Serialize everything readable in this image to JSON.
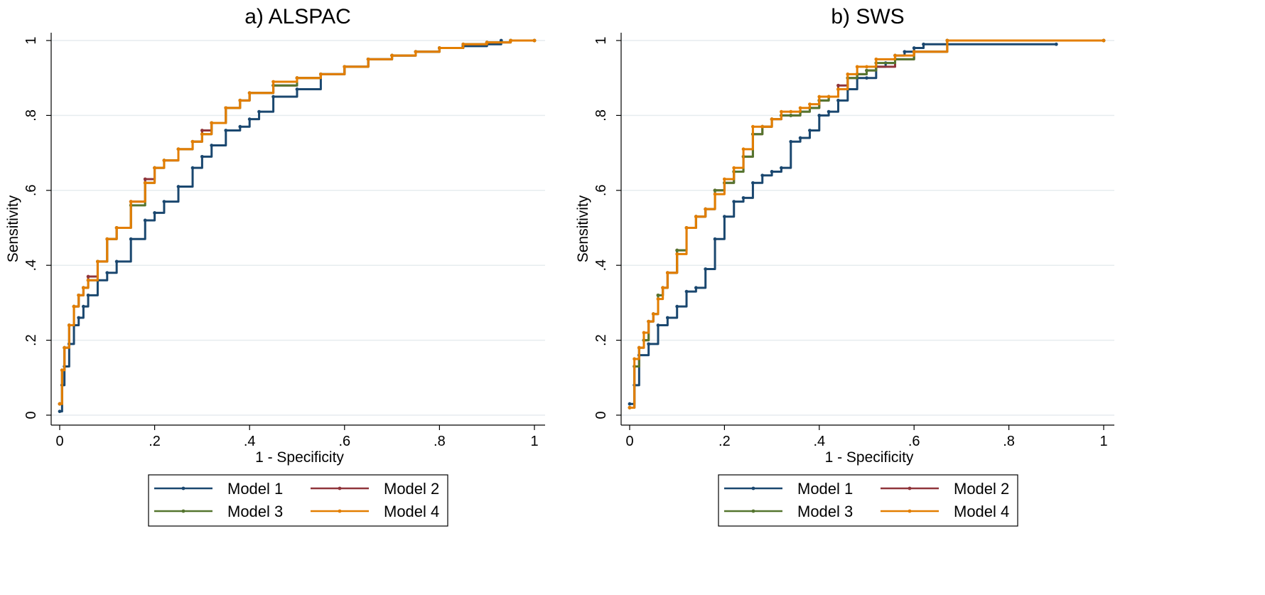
{
  "chart_data": [
    {
      "type": "line",
      "title": "a) ALSPAC",
      "xlabel": "1 - Specificity",
      "ylabel": "Sensitivity",
      "xlim": [
        0,
        1
      ],
      "ylim": [
        0,
        1
      ],
      "xticks": [
        "0",
        ".2",
        ".4",
        ".6",
        ".8",
        "1"
      ],
      "yticks": [
        "0",
        ".2",
        ".4",
        ".6",
        ".8",
        "1"
      ],
      "grid": "horizontal",
      "legend_position": "bottom",
      "series": [
        {
          "name": "Model 1",
          "color": "#1a476f",
          "x": [
            0,
            0.005,
            0.01,
            0.02,
            0.03,
            0.04,
            0.05,
            0.06,
            0.08,
            0.1,
            0.12,
            0.15,
            0.18,
            0.2,
            0.22,
            0.25,
            0.28,
            0.3,
            0.32,
            0.35,
            0.38,
            0.4,
            0.42,
            0.45,
            0.5,
            0.55,
            0.6,
            0.65,
            0.7,
            0.75,
            0.8,
            0.85,
            0.9,
            0.93
          ],
          "y": [
            0.01,
            0.08,
            0.13,
            0.19,
            0.24,
            0.26,
            0.29,
            0.32,
            0.36,
            0.38,
            0.41,
            0.47,
            0.52,
            0.54,
            0.57,
            0.61,
            0.66,
            0.69,
            0.72,
            0.76,
            0.77,
            0.79,
            0.81,
            0.85,
            0.87,
            0.91,
            0.93,
            0.95,
            0.96,
            0.97,
            0.98,
            0.985,
            0.99,
            1.0
          ]
        },
        {
          "name": "Model 2",
          "color": "#90353b",
          "x": [
            0,
            0.005,
            0.01,
            0.02,
            0.03,
            0.04,
            0.05,
            0.06,
            0.08,
            0.1,
            0.12,
            0.15,
            0.18,
            0.2,
            0.22,
            0.25,
            0.28,
            0.3,
            0.32,
            0.35,
            0.38,
            0.4,
            0.45,
            0.5,
            0.55,
            0.6,
            0.65,
            0.7,
            0.75,
            0.8,
            0.85,
            0.9,
            0.95,
            1
          ],
          "y": [
            0.03,
            0.12,
            0.18,
            0.24,
            0.29,
            0.32,
            0.34,
            0.37,
            0.41,
            0.47,
            0.5,
            0.57,
            0.63,
            0.66,
            0.68,
            0.71,
            0.73,
            0.76,
            0.78,
            0.82,
            0.84,
            0.86,
            0.88,
            0.9,
            0.91,
            0.93,
            0.95,
            0.96,
            0.97,
            0.98,
            0.99,
            0.995,
            1.0,
            1.0
          ]
        },
        {
          "name": "Model 3",
          "color": "#55752f",
          "x": [
            0,
            0.005,
            0.01,
            0.02,
            0.03,
            0.04,
            0.05,
            0.06,
            0.08,
            0.1,
            0.12,
            0.15,
            0.18,
            0.2,
            0.22,
            0.25,
            0.28,
            0.3,
            0.32,
            0.35,
            0.38,
            0.4,
            0.45,
            0.5,
            0.55,
            0.6,
            0.65,
            0.7,
            0.75,
            0.8,
            0.85,
            0.9,
            0.95,
            1
          ],
          "y": [
            0.03,
            0.12,
            0.18,
            0.24,
            0.29,
            0.32,
            0.34,
            0.36,
            0.41,
            0.47,
            0.5,
            0.56,
            0.62,
            0.66,
            0.68,
            0.71,
            0.73,
            0.75,
            0.78,
            0.82,
            0.84,
            0.86,
            0.88,
            0.9,
            0.91,
            0.93,
            0.95,
            0.96,
            0.97,
            0.98,
            0.99,
            0.995,
            1.0,
            1.0
          ]
        },
        {
          "name": "Model 4",
          "color": "#e37e00",
          "x": [
            0,
            0.005,
            0.01,
            0.02,
            0.03,
            0.04,
            0.05,
            0.06,
            0.08,
            0.1,
            0.12,
            0.15,
            0.18,
            0.2,
            0.22,
            0.25,
            0.28,
            0.3,
            0.32,
            0.35,
            0.38,
            0.4,
            0.45,
            0.5,
            0.55,
            0.6,
            0.65,
            0.7,
            0.75,
            0.8,
            0.85,
            0.9,
            0.95,
            1
          ],
          "y": [
            0.03,
            0.12,
            0.18,
            0.24,
            0.29,
            0.32,
            0.34,
            0.36,
            0.41,
            0.47,
            0.5,
            0.57,
            0.62,
            0.66,
            0.68,
            0.71,
            0.73,
            0.75,
            0.78,
            0.82,
            0.84,
            0.86,
            0.89,
            0.9,
            0.91,
            0.93,
            0.95,
            0.96,
            0.97,
            0.98,
            0.99,
            0.995,
            1.0,
            1.0
          ]
        }
      ]
    },
    {
      "type": "line",
      "title": "b) SWS",
      "xlabel": "1 - Specificity",
      "ylabel": "Sensitivity",
      "xlim": [
        0,
        1
      ],
      "ylim": [
        0,
        1
      ],
      "xticks": [
        "0",
        ".2",
        ".4",
        ".6",
        ".8",
        "1"
      ],
      "yticks": [
        "0",
        ".2",
        ".4",
        ".6",
        ".8",
        "1"
      ],
      "grid": "horizontal",
      "legend_position": "bottom",
      "series": [
        {
          "name": "Model 1",
          "color": "#1a476f",
          "x": [
            0,
            0.01,
            0.02,
            0.04,
            0.06,
            0.08,
            0.1,
            0.12,
            0.14,
            0.16,
            0.18,
            0.2,
            0.22,
            0.24,
            0.26,
            0.28,
            0.3,
            0.32,
            0.34,
            0.36,
            0.38,
            0.4,
            0.42,
            0.44,
            0.46,
            0.48,
            0.5,
            0.52,
            0.54,
            0.56,
            0.58,
            0.6,
            0.62,
            0.9
          ],
          "y": [
            0.03,
            0.08,
            0.16,
            0.19,
            0.24,
            0.26,
            0.29,
            0.33,
            0.34,
            0.39,
            0.47,
            0.53,
            0.57,
            0.58,
            0.62,
            0.64,
            0.65,
            0.66,
            0.73,
            0.74,
            0.76,
            0.8,
            0.81,
            0.84,
            0.87,
            0.9,
            0.9,
            0.93,
            0.94,
            0.96,
            0.97,
            0.98,
            0.99,
            0.99
          ]
        },
        {
          "name": "Model 2",
          "color": "#90353b",
          "x": [
            0,
            0.01,
            0.02,
            0.03,
            0.04,
            0.05,
            0.06,
            0.07,
            0.08,
            0.1,
            0.12,
            0.14,
            0.16,
            0.18,
            0.2,
            0.22,
            0.24,
            0.26,
            0.28,
            0.3,
            0.32,
            0.34,
            0.36,
            0.38,
            0.4,
            0.42,
            0.44,
            0.46,
            0.48,
            0.5,
            0.52,
            0.56,
            0.6,
            0.67,
            1
          ],
          "y": [
            0.02,
            0.13,
            0.18,
            0.2,
            0.25,
            0.27,
            0.32,
            0.34,
            0.38,
            0.44,
            0.5,
            0.53,
            0.55,
            0.6,
            0.62,
            0.65,
            0.69,
            0.75,
            0.77,
            0.79,
            0.8,
            0.8,
            0.81,
            0.82,
            0.84,
            0.85,
            0.88,
            0.9,
            0.91,
            0.92,
            0.93,
            0.95,
            0.97,
            1.0,
            1.0
          ]
        },
        {
          "name": "Model 3",
          "color": "#55752f",
          "x": [
            0,
            0.01,
            0.02,
            0.03,
            0.04,
            0.05,
            0.06,
            0.07,
            0.08,
            0.1,
            0.12,
            0.14,
            0.16,
            0.18,
            0.2,
            0.22,
            0.24,
            0.26,
            0.28,
            0.3,
            0.32,
            0.34,
            0.36,
            0.38,
            0.4,
            0.42,
            0.44,
            0.46,
            0.48,
            0.5,
            0.52,
            0.56,
            0.6,
            0.67,
            1
          ],
          "y": [
            0.02,
            0.13,
            0.18,
            0.2,
            0.25,
            0.27,
            0.32,
            0.34,
            0.38,
            0.44,
            0.5,
            0.53,
            0.55,
            0.6,
            0.62,
            0.65,
            0.69,
            0.75,
            0.77,
            0.79,
            0.8,
            0.8,
            0.81,
            0.82,
            0.84,
            0.85,
            0.87,
            0.9,
            0.91,
            0.92,
            0.94,
            0.95,
            0.97,
            1.0,
            1.0
          ]
        },
        {
          "name": "Model 4",
          "color": "#e37e00",
          "x": [
            0,
            0.01,
            0.02,
            0.03,
            0.04,
            0.05,
            0.06,
            0.07,
            0.08,
            0.1,
            0.12,
            0.14,
            0.16,
            0.18,
            0.2,
            0.22,
            0.24,
            0.26,
            0.28,
            0.3,
            0.32,
            0.34,
            0.36,
            0.38,
            0.4,
            0.42,
            0.44,
            0.46,
            0.48,
            0.5,
            0.52,
            0.56,
            0.6,
            0.67,
            1
          ],
          "y": [
            0.02,
            0.15,
            0.18,
            0.22,
            0.25,
            0.27,
            0.31,
            0.34,
            0.38,
            0.43,
            0.5,
            0.53,
            0.55,
            0.59,
            0.63,
            0.66,
            0.71,
            0.77,
            0.77,
            0.79,
            0.81,
            0.81,
            0.82,
            0.83,
            0.85,
            0.85,
            0.87,
            0.91,
            0.93,
            0.93,
            0.95,
            0.96,
            0.97,
            1.0,
            1.0
          ]
        }
      ]
    }
  ]
}
